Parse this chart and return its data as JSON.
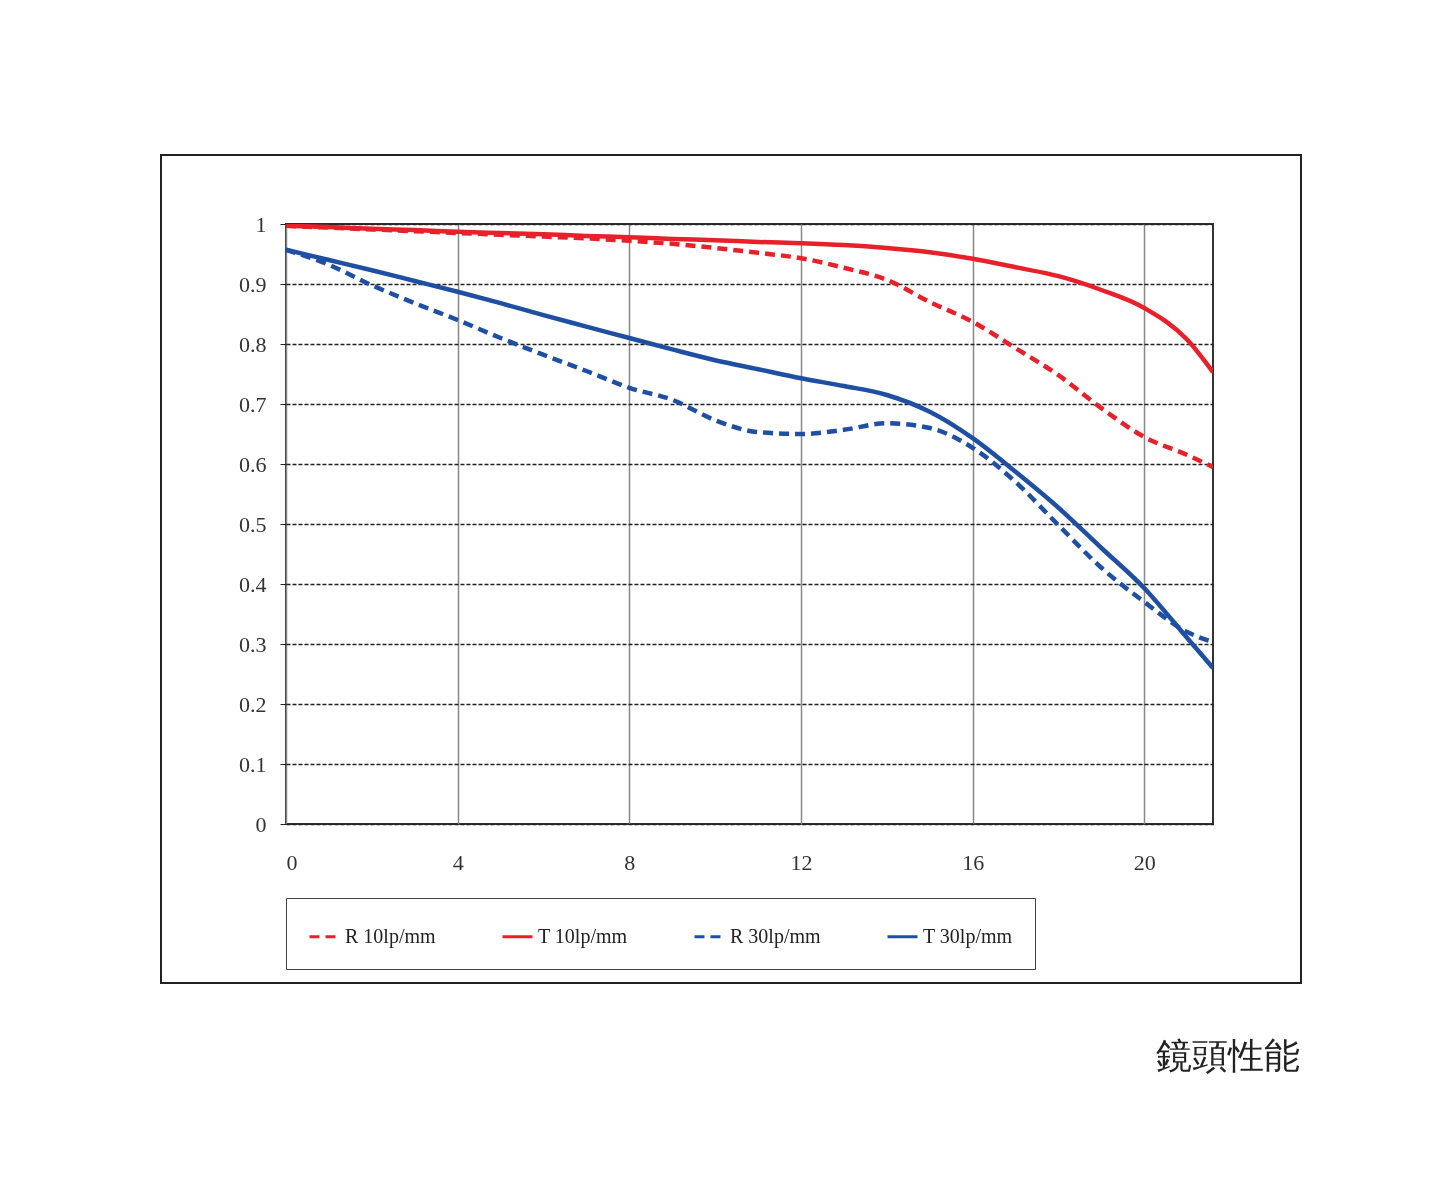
{
  "chart_data": {
    "type": "line",
    "xlim": [
      0,
      21.6
    ],
    "xticks": [
      0,
      4,
      8,
      12,
      16,
      20
    ],
    "ylim": [
      0,
      1
    ],
    "yticks": [
      {
        "value": 0,
        "label": "0"
      },
      0.1,
      0.2,
      0.3,
      0.4,
      0.5,
      0.6,
      0.7,
      0.8,
      0.9,
      {
        "value": 1,
        "label": "1"
      }
    ],
    "grid": true,
    "legend": "bottom",
    "marker": "none",
    "annotations": [
      "鏡頭性能"
    ],
    "x": [
      0,
      1,
      2,
      3,
      4,
      5,
      6,
      7,
      8,
      9,
      10,
      11,
      12,
      13,
      14,
      15,
      16,
      17,
      18,
      19,
      20,
      21,
      21.6
    ],
    "series": [
      {
        "name": "R 10lp/mm",
        "color": "#e8202a",
        "line_style": "dashed",
        "values": [
          0.997,
          0.994,
          0.991,
          0.988,
          0.985,
          0.982,
          0.979,
          0.976,
          0.972,
          0.967,
          0.96,
          0.952,
          0.943,
          0.927,
          0.907,
          0.87,
          0.837,
          0.793,
          0.748,
          0.693,
          0.645,
          0.615,
          0.595
        ]
      },
      {
        "name": "T 10lp/mm",
        "color": "#e8202a",
        "line_style": "solid",
        "values": [
          0.997,
          0.995,
          0.992,
          0.99,
          0.987,
          0.985,
          0.983,
          0.98,
          0.978,
          0.975,
          0.973,
          0.97,
          0.968,
          0.965,
          0.96,
          0.953,
          0.942,
          0.928,
          0.913,
          0.89,
          0.86,
          0.807,
          0.753
        ]
      },
      {
        "name": "R 30lp/mm",
        "color": "#1f4fa3",
        "line_style": "dashed",
        "values": [
          0.957,
          0.932,
          0.898,
          0.868,
          0.84,
          0.81,
          0.782,
          0.755,
          0.727,
          0.707,
          0.673,
          0.653,
          0.65,
          0.657,
          0.668,
          0.66,
          0.627,
          0.57,
          0.498,
          0.427,
          0.37,
          0.32,
          0.303
        ]
      },
      {
        "name": "T 30lp/mm",
        "color": "#1f4fa3",
        "line_style": "solid",
        "values": [
          0.957,
          0.94,
          0.923,
          0.905,
          0.887,
          0.868,
          0.848,
          0.829,
          0.81,
          0.791,
          0.773,
          0.758,
          0.743,
          0.73,
          0.715,
          0.687,
          0.643,
          0.587,
          0.527,
          0.46,
          0.393,
          0.31,
          0.26
        ]
      }
    ]
  }
}
